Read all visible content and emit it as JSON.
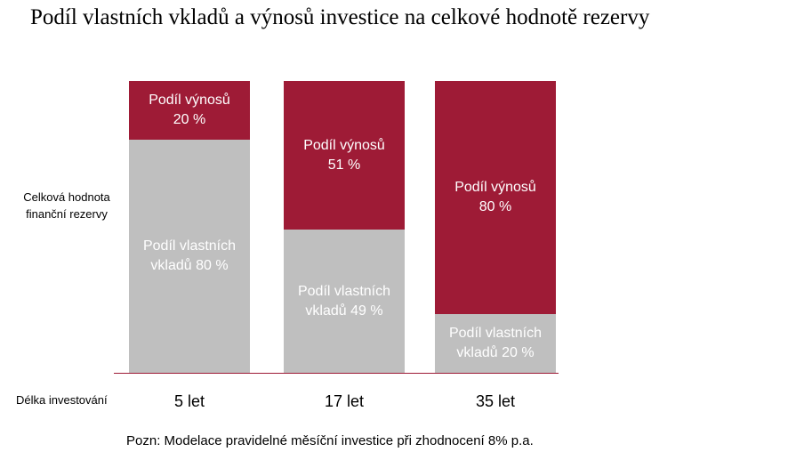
{
  "chart_data": {
    "type": "stacked_bar",
    "title": "Podíl vlastních vkladů a výnosů investice na celkové hodnotě rezervy",
    "y_label": "Celková hodnota finanční rezervy",
    "x_label": "Délka investování",
    "note": "Pozn: Modelace pravidelné měsíční investice při zhodnocení 8% p.a.",
    "categories": [
      "5 let",
      "17 let",
      "35 let"
    ],
    "series": [
      {
        "name": "Podíl vlastních vkladů",
        "color": "#bfbfbf",
        "values": [
          80,
          49,
          20
        ],
        "value_labels": [
          "80 %",
          "49 %",
          "20 %"
        ]
      },
      {
        "name": "Podíl výnosů",
        "color": "#9e1b36",
        "values": [
          20,
          51,
          80
        ],
        "value_labels": [
          "20 %",
          "51 %",
          "80 %"
        ]
      }
    ],
    "ylim": [
      0,
      100
    ]
  }
}
